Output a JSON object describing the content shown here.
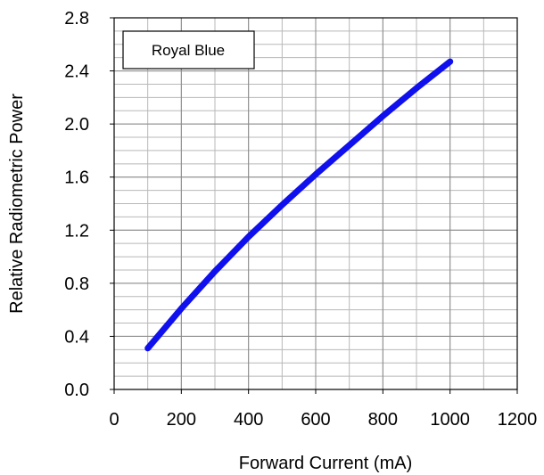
{
  "chart_data": {
    "type": "line",
    "title": "",
    "xlabel": "Forward Current (mA)",
    "ylabel": "Relative Radiometric Power",
    "xlim": [
      0,
      1200
    ],
    "ylim": [
      0.0,
      2.8
    ],
    "x_ticks": [
      "0",
      "200",
      "400",
      "600",
      "800",
      "1000",
      "1200"
    ],
    "y_ticks": [
      "0.0",
      "0.4",
      "0.8",
      "1.2",
      "1.6",
      "2.0",
      "2.4",
      "2.8"
    ],
    "x_minor_step": 100,
    "y_minor_step": 0.1,
    "grid": true,
    "legend_position": "top-left",
    "series": [
      {
        "name": "Royal Blue",
        "color": "#1010ee",
        "x": [
          100,
          200,
          300,
          400,
          500,
          600,
          700,
          800,
          900,
          1000
        ],
        "y": [
          0.31,
          0.61,
          0.89,
          1.15,
          1.39,
          1.62,
          1.84,
          2.06,
          2.27,
          2.47
        ]
      }
    ]
  }
}
